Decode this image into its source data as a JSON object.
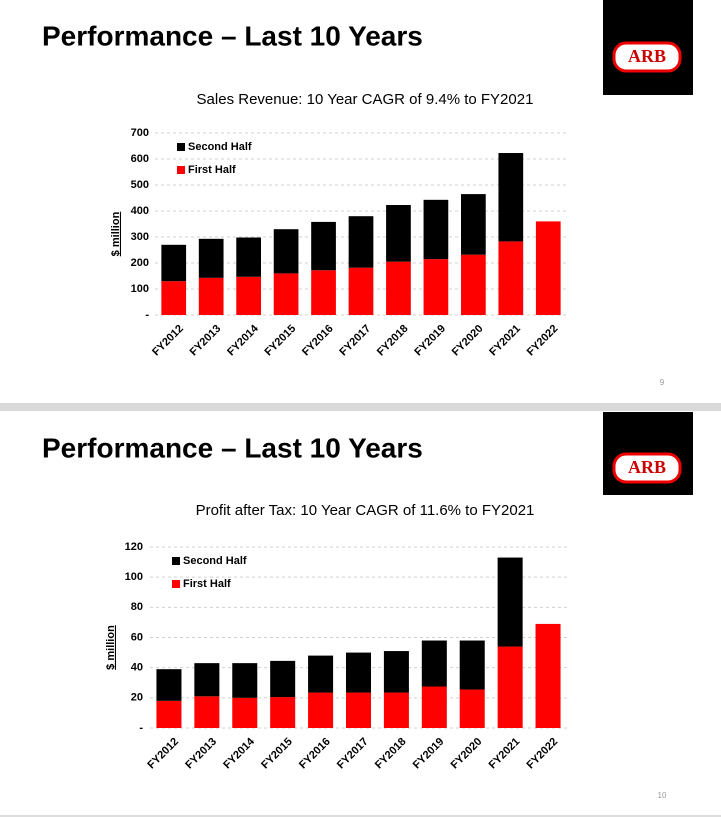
{
  "slides": [
    {
      "heading": "Performance – Last 10 Years",
      "logo": "ARB",
      "page_number": 9
    },
    {
      "heading": "Performance – Last 10 Years",
      "logo": "ARB",
      "page_number": 10
    }
  ],
  "chart_data": [
    {
      "type": "stacked_bar",
      "title": "Sales Revenue: 10 Year CAGR of 9.4% to FY2021",
      "y_label": "$ million",
      "categories": [
        "FY2012",
        "FY2013",
        "FY2014",
        "FY2015",
        "FY2016",
        "FY2017",
        "FY2018",
        "FY2019",
        "FY2020",
        "FY2021",
        "FY2022"
      ],
      "series": [
        {
          "name": "First Half",
          "color": "#ff0000",
          "values": [
            130,
            143,
            147,
            160,
            172,
            182,
            205,
            215,
            232,
            283,
            360
          ]
        },
        {
          "name": "Second Half",
          "color": "#000000",
          "values": [
            140,
            150,
            151,
            170,
            186,
            198,
            218,
            228,
            233,
            340,
            null
          ]
        }
      ],
      "ylim": [
        0,
        700
      ],
      "yticks": [
        {
          "value": 0,
          "label": "-"
        },
        100,
        200,
        300,
        400,
        500,
        600,
        700
      ],
      "grid": true,
      "legend": "upper left"
    },
    {
      "type": "stacked_bar",
      "title": "Profit after Tax: 10 Year CAGR of 11.6% to FY2021",
      "y_label": "$ million",
      "categories": [
        "FY2012",
        "FY2013",
        "FY2014",
        "FY2015",
        "FY2016",
        "FY2017",
        "FY2018",
        "FY2019",
        "FY2020",
        "FY2021",
        "FY2022"
      ],
      "series": [
        {
          "name": "First Half",
          "color": "#ff0000",
          "values": [
            18,
            21,
            20,
            20.5,
            23.5,
            23.5,
            23.5,
            27.5,
            25.5,
            54,
            69
          ]
        },
        {
          "name": "Second Half",
          "color": "#000000",
          "values": [
            21,
            22,
            23,
            24,
            24.5,
            26.5,
            27.5,
            30.5,
            32.5,
            59,
            null
          ]
        }
      ],
      "ylim": [
        0,
        120
      ],
      "yticks": [
        {
          "value": 0,
          "label": "-"
        },
        20,
        40,
        60,
        80,
        100,
        120
      ],
      "grid": true,
      "legend": "upper left"
    }
  ]
}
